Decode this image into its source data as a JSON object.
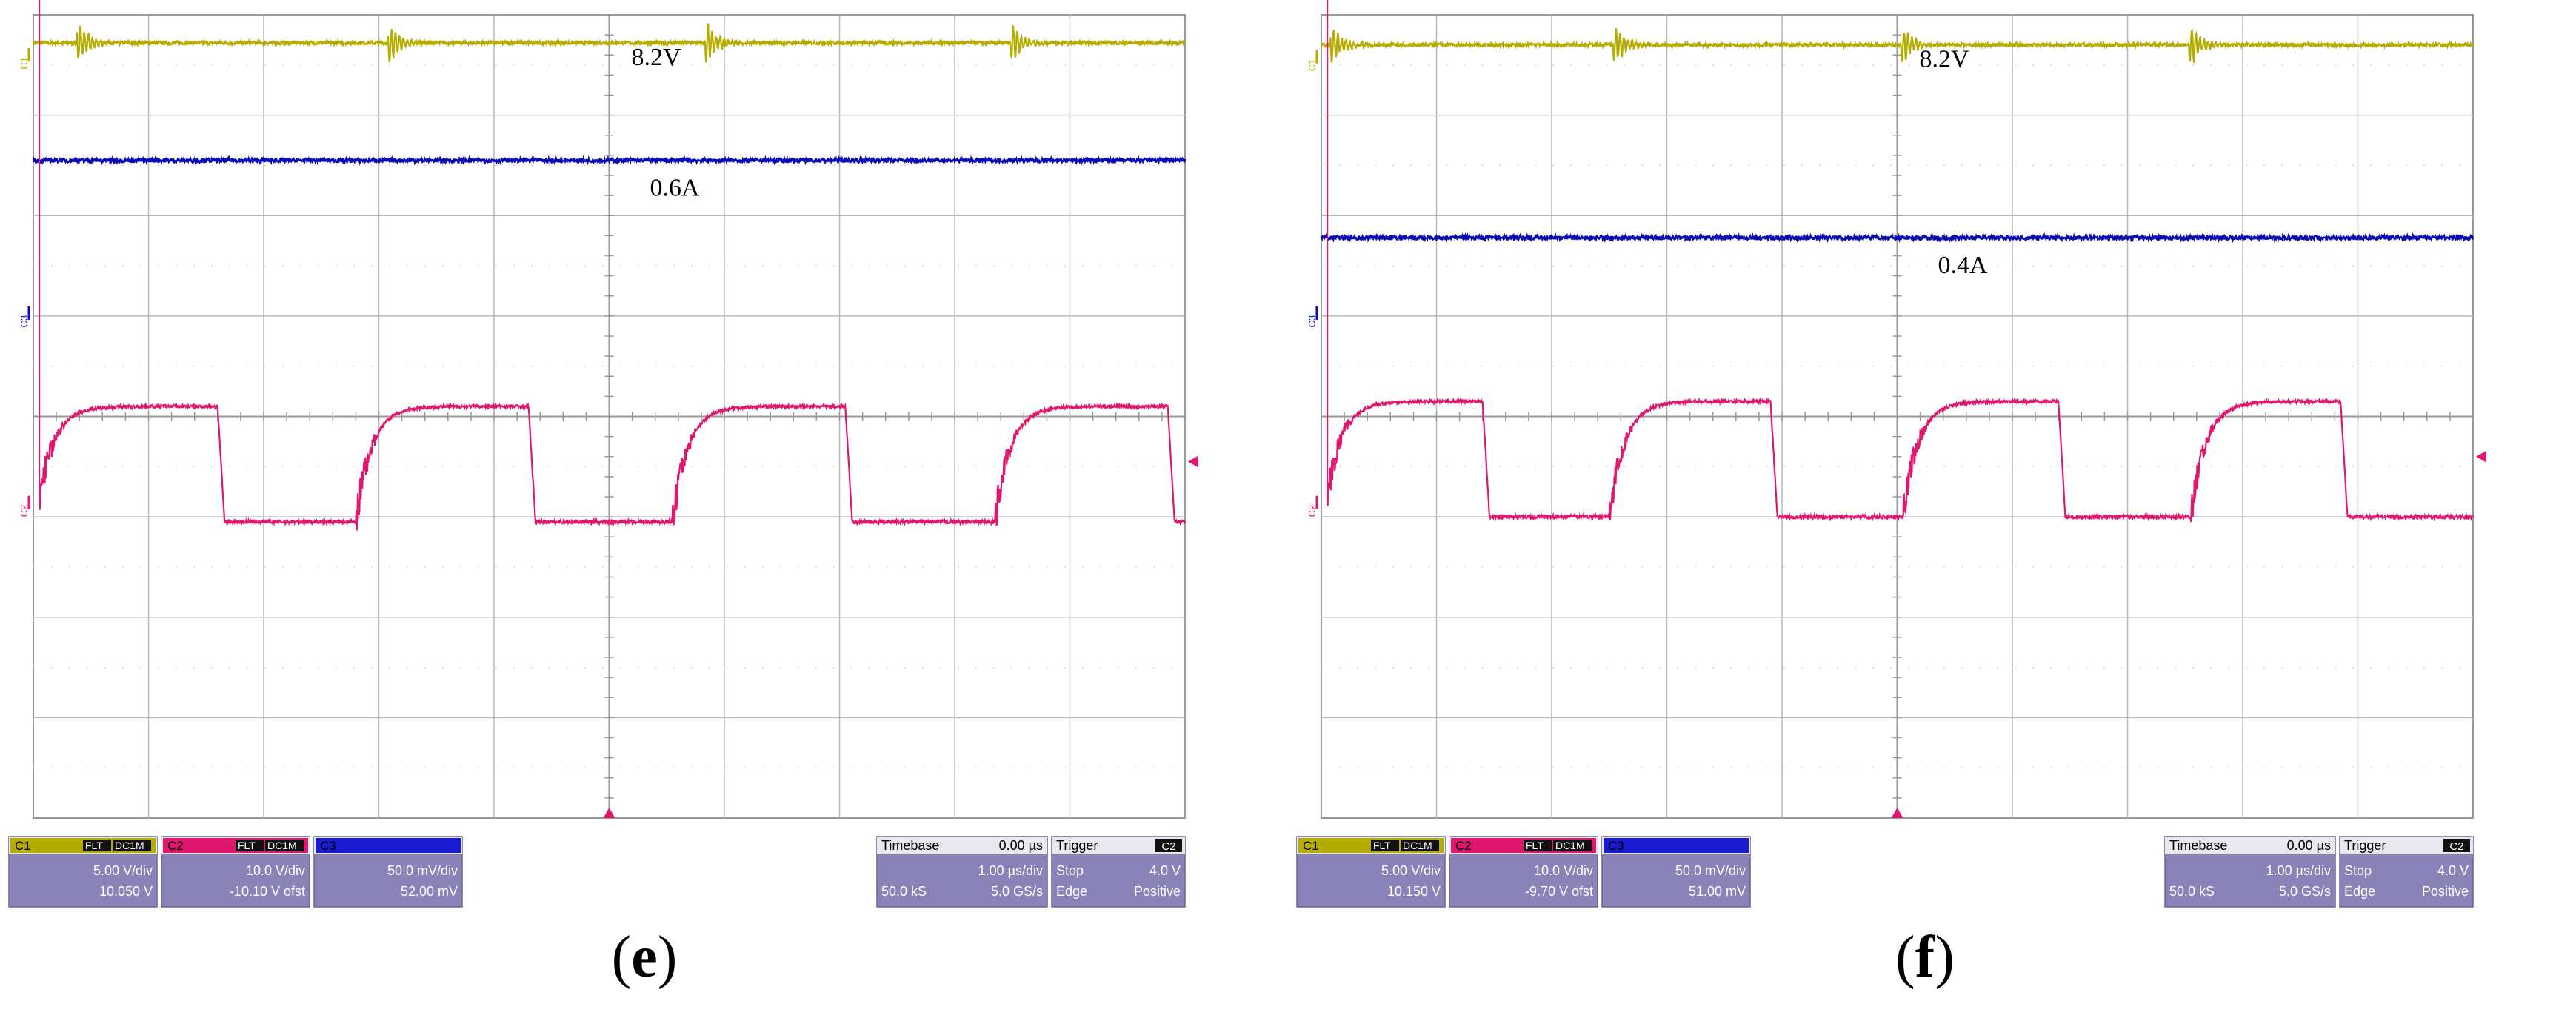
{
  "chart_data": [
    {
      "type": "line",
      "panel_label": "e",
      "grid": true,
      "divisions": {
        "x": 10,
        "y": 8
      },
      "annotations": [
        "8.2V",
        "0.6A"
      ],
      "channel_markers": [
        "C1",
        "C3",
        "C2"
      ],
      "series": [
        {
          "channel": "C1",
          "color": "#b5ac00",
          "shape": "flat_with_switching_ringing",
          "level_div": 3.72,
          "bursts_div": [
            0.4,
            3.1,
            5.85,
            8.5
          ]
        },
        {
          "channel": "C3",
          "color": "#0a0ab4",
          "shape": "flat",
          "level_div": 2.55
        },
        {
          "channel": "C2",
          "color": "#e0176e",
          "shape": "square_wave",
          "high_div": 0.1,
          "low_div": -1.05,
          "edges_div": [
            0.05,
            1.6,
            2.8,
            4.3,
            5.55,
            7.05,
            8.35,
            9.85,
            10.0
          ]
        }
      ],
      "readout": {
        "c1": {
          "label": "C1",
          "tags": [
            "FLT",
            "DC1M"
          ],
          "scale": "5.00 V/div",
          "value": "10.050 V"
        },
        "c2": {
          "label": "C2",
          "tags": [
            "FLT",
            "DC1M"
          ],
          "scale": "10.0 V/div",
          "value": "-10.10 V ofst"
        },
        "c3": {
          "label": "C3",
          "scale": "50.0 mV/div",
          "value": "52.00 mV"
        },
        "timebase": {
          "label": "Timebase",
          "value": "0.00 µs",
          "scale": "1.00 µs/div",
          "samples": "50.0 kS",
          "rate": "5.0 GS/s"
        },
        "trigger": {
          "label": "Trigger",
          "channel": "C2",
          "mode": "Stop",
          "level": "4.0 V",
          "type": "Edge",
          "slope": "Positive"
        }
      }
    },
    {
      "type": "line",
      "panel_label": "f",
      "grid": true,
      "divisions": {
        "x": 10,
        "y": 8
      },
      "annotations": [
        "8.2V",
        "0.4A"
      ],
      "channel_markers": [
        "C1",
        "C3",
        "C2"
      ],
      "series": [
        {
          "channel": "C1",
          "color": "#b5ac00",
          "shape": "flat_with_switching_ringing",
          "level_div": 3.7,
          "bursts_div": [
            0.1,
            2.55,
            5.05,
            7.55
          ]
        },
        {
          "channel": "C3",
          "color": "#0a0ab4",
          "shape": "flat",
          "level_div": 1.78
        },
        {
          "channel": "C2",
          "color": "#e0176e",
          "shape": "square_wave",
          "high_div": 0.15,
          "low_div": -1.0,
          "edges_div": [
            0.05,
            1.4,
            2.5,
            3.9,
            5.05,
            6.4,
            7.55,
            8.85,
            10.0
          ]
        }
      ],
      "readout": {
        "c1": {
          "label": "C1",
          "tags": [
            "FLT",
            "DC1M"
          ],
          "scale": "5.00 V/div",
          "value": "10.150 V"
        },
        "c2": {
          "label": "C2",
          "tags": [
            "FLT",
            "DC1M"
          ],
          "scale": "10.0 V/div",
          "value": "-9.70 V ofst"
        },
        "c3": {
          "label": "C3",
          "scale": "50.0 mV/div",
          "value": "51.00 mV"
        },
        "timebase": {
          "label": "Timebase",
          "value": "0.00 µs",
          "scale": "1.00 µs/div",
          "samples": "50.0 kS",
          "rate": "5.0 GS/s"
        },
        "trigger": {
          "label": "Trigger",
          "channel": "C2",
          "mode": "Stop",
          "level": "4.0 V",
          "type": "Edge",
          "slope": "Positive"
        }
      }
    }
  ]
}
